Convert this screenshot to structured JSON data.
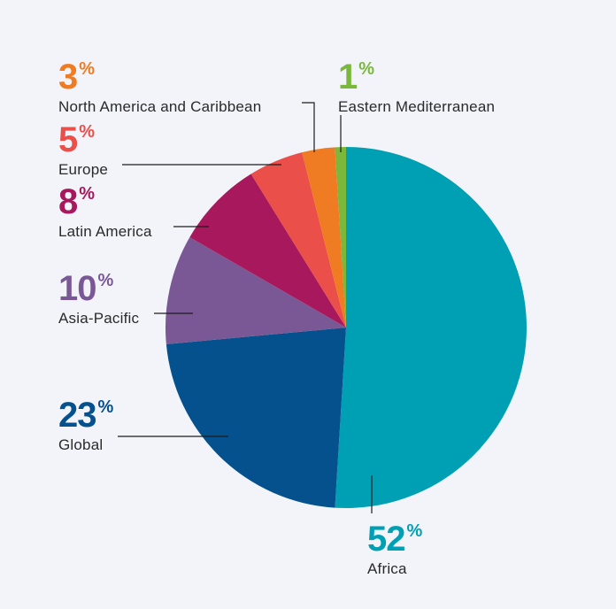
{
  "chart_data": {
    "type": "pie",
    "title": "",
    "start_angle_deg": 0,
    "direction": "clockwise",
    "slices": [
      {
        "label": "Africa",
        "value": 52,
        "percent_label": "52",
        "percent_sign": "%",
        "color": "#00a0b4"
      },
      {
        "label": "Global",
        "value": 23,
        "percent_label": "23",
        "percent_sign": "%",
        "color": "#04518d"
      },
      {
        "label": "Asia-Pacific",
        "value": 10,
        "percent_label": "10",
        "percent_sign": "%",
        "color": "#7a5896"
      },
      {
        "label": "Latin America",
        "value": 8,
        "percent_label": "8",
        "percent_sign": "%",
        "color": "#a7195c"
      },
      {
        "label": "Europe",
        "value": 5,
        "percent_label": "5",
        "percent_sign": "%",
        "color": "#ea4f4a"
      },
      {
        "label": "North America and Caribbean",
        "value": 3,
        "percent_label": "3",
        "percent_sign": "%",
        "color": "#ef7c22"
      },
      {
        "label": "Eastern Mediterranean",
        "value": 1,
        "percent_label": "1",
        "percent_sign": "%",
        "color": "#7ab83c"
      }
    ],
    "legend": "none",
    "labels": "outside with leader lines"
  }
}
